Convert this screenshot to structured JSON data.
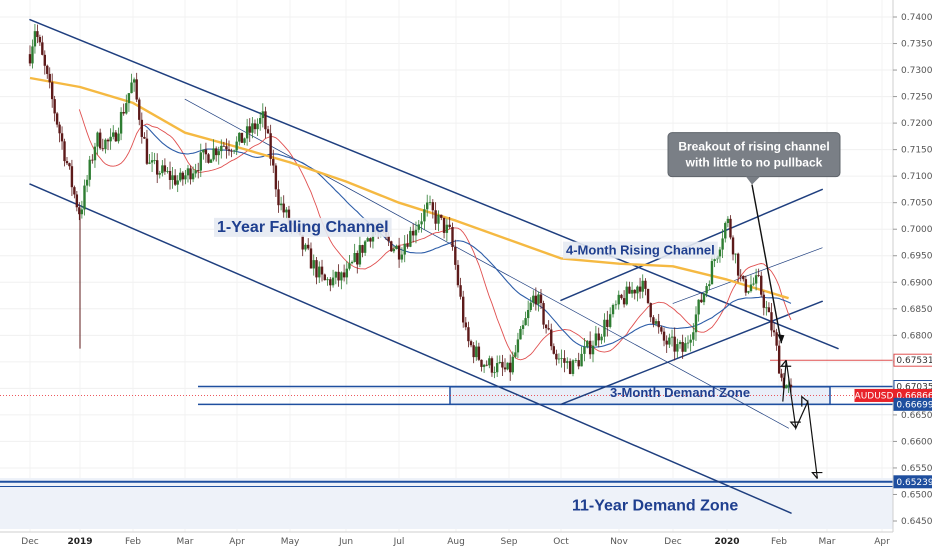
{
  "chart_data": {
    "type": "candlestick",
    "symbol": "AUDUSD",
    "y_axis": {
      "ticks": [
        "0.74000",
        "0.73500",
        "0.73000",
        "0.72500",
        "0.72000",
        "0.71500",
        "0.71000",
        "0.70500",
        "0.70000",
        "0.69500",
        "0.69000",
        "0.68500",
        "0.68000",
        "0.67500",
        "0.67000",
        "0.66500",
        "0.66000",
        "0.65500",
        "0.65000",
        "0.64500"
      ],
      "ylim": [
        0.6435,
        0.7425
      ]
    },
    "x_axis": {
      "ticks": [
        "Dec",
        "2019",
        "Feb",
        "Mar",
        "Apr",
        "May",
        "Jun",
        "Jul",
        "Aug",
        "Sep",
        "Oct",
        "Nov",
        "Dec",
        "2020",
        "Feb",
        "Mar",
        "Apr"
      ],
      "bold": [
        "2019",
        "2020"
      ]
    },
    "price_labels": [
      {
        "value": "0.67531",
        "color": "#ffffff",
        "text_color": "#333333",
        "border": "#e05050",
        "level": 0.67531
      },
      {
        "value": "0.67035",
        "color": "#ffffff",
        "text_color": "#333333",
        "border": "#1f4f9f",
        "level": 0.67035
      },
      {
        "value": "AUDUSD",
        "color": "#e8232a",
        "text_color": "#ffffff",
        "border": "#e8232a",
        "level": 0.66866
      },
      {
        "value": "0.66866",
        "color": "#e8232a",
        "text_color": "#ffffff",
        "border": "#e8232a",
        "level": 0.66866
      },
      {
        "value": "0.66699",
        "color": "#1f4f9f",
        "text_color": "#ffffff",
        "border": "#1f4f9f",
        "level": 0.66699
      },
      {
        "value": "0.65239",
        "color": "#1f4f9f",
        "text_color": "#ffffff",
        "border": "#1f4f9f",
        "level": 0.65239
      }
    ],
    "annotations": {
      "falling_channel": "1-Year Falling Channel",
      "rising_channel": "4-Month Rising Channel",
      "demand_3m": "3-Month Demand Zone",
      "demand_11y": "11-Year Demand Zone",
      "callout_line1": "Breakout of rising channel",
      "callout_line2": "with little to no pullback"
    },
    "colors": {
      "up": "#2e7d32",
      "down": "#5d1a1a",
      "ma_fast": "#e05050",
      "ma_mid": "#2d5da8",
      "ma_slow": "#f5b942",
      "channel": "#1f3f7f",
      "zone": "#1f4f9f"
    }
  }
}
